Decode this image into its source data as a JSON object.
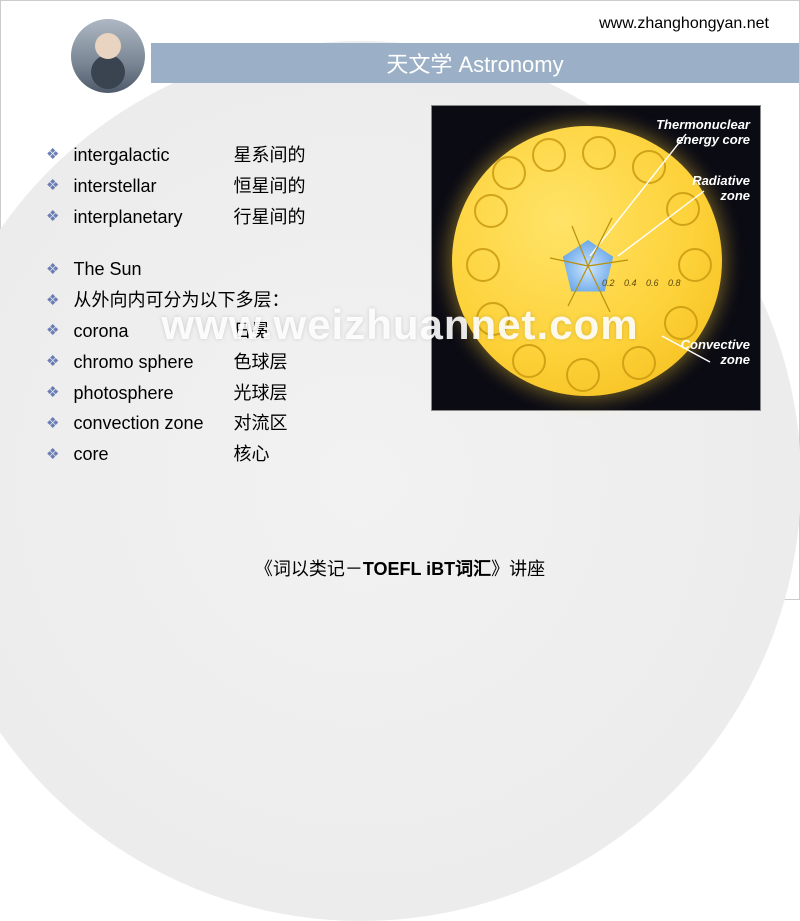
{
  "header": {
    "url": "www.zhanghongyan.net",
    "title": "天文学 Astronomy"
  },
  "colors": {
    "title_bar_bg": "#9bb0c6",
    "title_bar_text": "#ffffff",
    "bullet_color": "#6a7db5",
    "body_text": "#000000",
    "diagram_bg": "#0b0b14",
    "sun_outer": "#f2b915",
    "sun_inner": "#ffe368",
    "core_color": "#6aa8e8"
  },
  "vocab_group1": [
    {
      "en": "intergalactic",
      "zh": "星系间的"
    },
    {
      "en": "interstellar",
      "zh": "恒星间的"
    },
    {
      "en": "interplanetary",
      "zh": "行星间的"
    }
  ],
  "section_heading": "The Sun",
  "section_sub": "从外向内可分为以下多层：",
  "vocab_group2": [
    {
      "en": "corona",
      "zh": "日冕"
    },
    {
      "en": "chromo sphere",
      "zh": "色球层"
    },
    {
      "en": "photosphere",
      "zh": "光球层"
    },
    {
      "en": "convection zone",
      "zh": "对流区"
    },
    {
      "en": "core",
      "zh": "核心"
    }
  ],
  "diagram": {
    "labels": {
      "core": "Thermonuclear\nenergy core",
      "radiative": "Radiative\nzone",
      "convective": "Convective\nzone"
    },
    "scale_ticks": [
      "0.2",
      "0.4",
      "0.6",
      "0.8"
    ]
  },
  "watermark": "www.weizhuannet.com",
  "footer": {
    "prefix": "《词以类记－",
    "bold": "TOEFL iBT词汇",
    "suffix": "》讲座"
  }
}
